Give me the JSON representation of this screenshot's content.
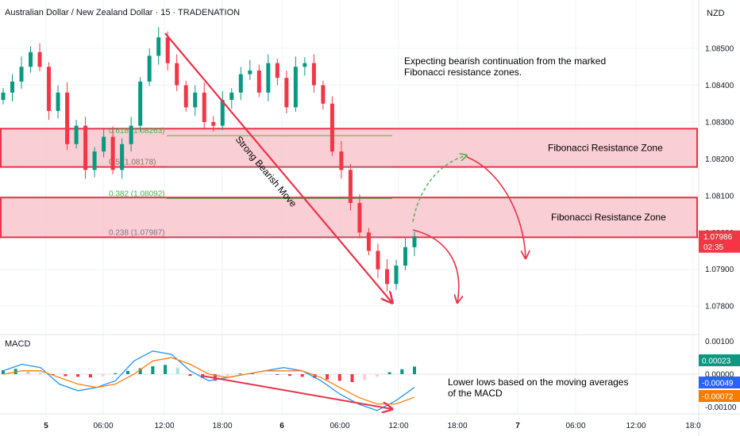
{
  "chart_data": [
    {
      "type": "candlestick",
      "title": "Australian Dollar / New Zealand Dollar · 15 · TRADENATION",
      "currency": "NZD",
      "xlabel": "",
      "ylabel": "",
      "ylim": [
        1.0774,
        1.0861
      ],
      "y_ticks": [
        "1.08500",
        "1.08400",
        "1.08300",
        "1.08200",
        "1.08100",
        "1.08000",
        "1.07900",
        "1.07800"
      ],
      "x_ticks": [
        "5",
        "06:00",
        "12:00",
        "18:00",
        "6",
        "06:00",
        "12:00",
        "18:00",
        "7",
        "06:00",
        "12:00",
        "18:0"
      ],
      "last_price": {
        "value": "1.07986",
        "countdown": "02:35"
      },
      "candles_close_path": [
        1.0838,
        1.0841,
        1.0845,
        1.0849,
        1.0845,
        1.0833,
        1.0838,
        1.0824,
        1.0829,
        1.0817,
        1.0822,
        1.0826,
        1.0817,
        1.0824,
        1.0829,
        1.0841,
        1.0848,
        1.0853,
        1.0846,
        1.084,
        1.0834,
        1.0838,
        1.083,
        1.0829,
        1.0836,
        1.0838,
        1.0843,
        1.0844,
        1.0838,
        1.0846,
        1.0842,
        1.0834,
        1.0845,
        1.0846,
        1.084,
        1.0835,
        1.0822,
        1.0817,
        1.0808,
        1.08,
        1.0795,
        1.079,
        1.0786,
        1.0791,
        1.0796,
        1.0799
      ],
      "fib_levels": [
        {
          "label": "0.618 (1.08263)",
          "value": 1.08263
        },
        {
          "label": "0.5 (1.08178)",
          "value": 1.08178
        },
        {
          "label": "0.382 (1.08092)",
          "value": 1.08092
        },
        {
          "label": "0.238 (1.07987)",
          "value": 1.07987
        }
      ],
      "zones": [
        {
          "label": "Fibonacci Resistance Zone",
          "from": 1.08178,
          "to": 1.08282
        },
        {
          "label": "Fibonacci Resistance Zone",
          "from": 1.07987,
          "to": 1.08095
        }
      ],
      "annotations": {
        "note_lines": [
          "Expecting bearish continuation from the marked",
          "Fibonacci resistance zones."
        ],
        "move_label": "Strong Bearish Move"
      }
    },
    {
      "type": "macd",
      "title": "MACD",
      "ylim": [
        -0.00115,
        0.00115
      ],
      "y_ticks": [
        "0.00100",
        "0.00000",
        "-0.00100"
      ],
      "badges": [
        {
          "label": "0.00023",
          "value": 0.00023,
          "color": "#089981"
        },
        {
          "label": "-0.00049",
          "value": -0.00049,
          "color": "#2962ff"
        },
        {
          "label": "-0.00072",
          "value": -0.00072,
          "color": "#f57c00"
        }
      ],
      "histogram": [
        0.00012,
        0.00016,
        0.0001,
        5e-05,
        -2e-05,
        -6e-05,
        -8e-05,
        -0.0001,
        -6e-05,
        3e-05,
        0.0001,
        0.00018,
        0.00024,
        0.00028,
        0.0002,
        -5e-05,
        -0.00012,
        -0.0002,
        -0.0001,
        2e-05,
        4e-05,
        1e-05,
        -2e-05,
        -5e-05,
        -8e-05,
        -0.00012,
        -0.00016,
        -0.0002,
        -0.00024,
        -0.00018,
        -8e-05,
        6e-05,
        0.00015,
        0.00023
      ],
      "macd_line": [
        0.0001,
        0.0003,
        0.0002,
        -0.0003,
        -0.0005,
        -0.0004,
        -0.0002,
        0.0004,
        0.0007,
        0.0006,
        0.0001,
        -0.0002,
        -0.0001,
        0.0,
        0.0001,
        0.0002,
        0.0001,
        -0.0002,
        -0.0006,
        -0.0009,
        -0.0011,
        -0.0008,
        -0.0004
      ],
      "signal_line": [
        0.0,
        0.0001,
        0.0001,
        -0.0001,
        -0.0003,
        -0.0004,
        -0.0003,
        0.0,
        0.0004,
        0.0005,
        0.0003,
        0.0,
        -0.0001,
        0.0,
        0.0001,
        0.0001,
        0.0001,
        -0.0001,
        -0.0004,
        -0.0007,
        -0.0009,
        -0.0009,
        -0.0007
      ],
      "note_lines": [
        "Lower lows based on the moving averages",
        "of the MACD"
      ]
    }
  ],
  "colors": {
    "up": "#089981",
    "down": "#f23645",
    "zone_fill": "#f8c6cc",
    "zone_border": "#e8334a",
    "arrow": "#e8334a",
    "projection_green": "#4caf50",
    "macd_line": "#2196f3",
    "signal_line": "#ff7f0e",
    "price_badge": "#f23645"
  }
}
